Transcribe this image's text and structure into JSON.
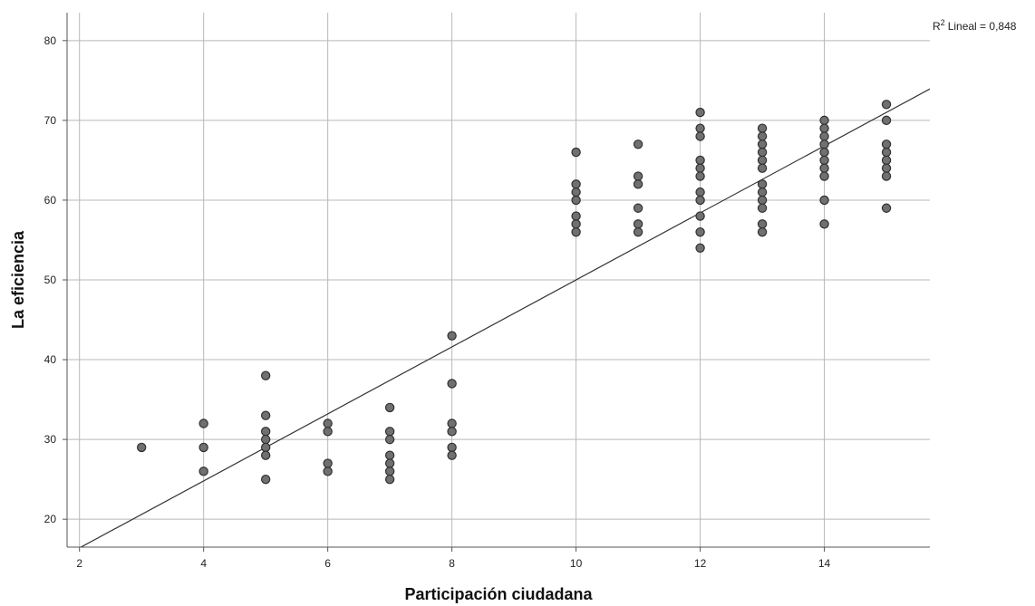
{
  "chart_data": {
    "type": "scatter",
    "xlabel": "Participación ciudadana",
    "ylabel": "La eficiencia",
    "xlim": [
      1.8,
      15.7
    ],
    "ylim": [
      16.5,
      83.5
    ],
    "x_ticks": [
      2,
      4,
      6,
      8,
      10,
      12,
      14
    ],
    "y_ticks": [
      20,
      30,
      40,
      50,
      60,
      70,
      80
    ],
    "grid": true,
    "fit_line": {
      "type": "linear",
      "r2_label_sup": "2",
      "r2_label_prefix": "R",
      "r2_label_text": "Lineal = 0,848",
      "intercept": 8.0,
      "slope": 4.2
    },
    "points": [
      [
        3,
        29
      ],
      [
        4,
        32
      ],
      [
        4,
        29
      ],
      [
        4,
        26
      ],
      [
        5,
        38
      ],
      [
        5,
        33
      ],
      [
        5,
        31
      ],
      [
        5,
        30
      ],
      [
        5,
        29
      ],
      [
        5,
        28
      ],
      [
        5,
        25
      ],
      [
        6,
        32
      ],
      [
        6,
        31
      ],
      [
        6,
        27
      ],
      [
        6,
        26
      ],
      [
        7,
        34
      ],
      [
        7,
        31
      ],
      [
        7,
        30
      ],
      [
        7,
        28
      ],
      [
        7,
        27
      ],
      [
        7,
        26
      ],
      [
        7,
        25
      ],
      [
        8,
        43
      ],
      [
        8,
        37
      ],
      [
        8,
        32
      ],
      [
        8,
        31
      ],
      [
        8,
        29
      ],
      [
        8,
        28
      ],
      [
        10,
        66
      ],
      [
        10,
        62
      ],
      [
        10,
        61
      ],
      [
        10,
        60
      ],
      [
        10,
        58
      ],
      [
        10,
        57
      ],
      [
        10,
        56
      ],
      [
        11,
        67
      ],
      [
        11,
        63
      ],
      [
        11,
        62
      ],
      [
        11,
        59
      ],
      [
        11,
        57
      ],
      [
        11,
        56
      ],
      [
        12,
        71
      ],
      [
        12,
        69
      ],
      [
        12,
        68
      ],
      [
        12,
        65
      ],
      [
        12,
        64
      ],
      [
        12,
        63
      ],
      [
        12,
        61
      ],
      [
        12,
        60
      ],
      [
        12,
        58
      ],
      [
        12,
        56
      ],
      [
        12,
        54
      ],
      [
        13,
        69
      ],
      [
        13,
        68
      ],
      [
        13,
        67
      ],
      [
        13,
        66
      ],
      [
        13,
        65
      ],
      [
        13,
        64
      ],
      [
        13,
        62
      ],
      [
        13,
        61
      ],
      [
        13,
        60
      ],
      [
        13,
        59
      ],
      [
        13,
        57
      ],
      [
        13,
        56
      ],
      [
        14,
        70
      ],
      [
        14,
        69
      ],
      [
        14,
        68
      ],
      [
        14,
        67
      ],
      [
        14,
        66
      ],
      [
        14,
        65
      ],
      [
        14,
        64
      ],
      [
        14,
        63
      ],
      [
        14,
        60
      ],
      [
        14,
        57
      ],
      [
        15,
        72
      ],
      [
        15,
        70
      ],
      [
        15,
        67
      ],
      [
        15,
        66
      ],
      [
        15,
        65
      ],
      [
        15,
        64
      ],
      [
        15,
        63
      ],
      [
        15,
        59
      ]
    ]
  }
}
